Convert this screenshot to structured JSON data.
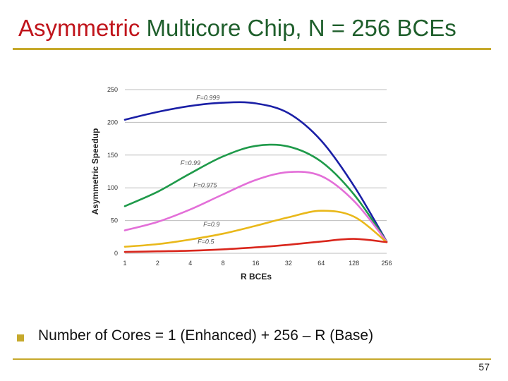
{
  "slide": {
    "title_accent": "Asymmetric",
    "title_rest": " Multicore Chip, N = 256 BCEs",
    "bullet": "Number of Cores = 1 (Enhanced) + 256 – R (Base)",
    "page_number": "57",
    "colors": {
      "title_accent": "#c0141b",
      "title_main": "#1f5f2c",
      "rule": "#c6a92c",
      "bullet": "#c6a92c"
    }
  },
  "chart_data": {
    "type": "line",
    "xlabel": "R BCEs",
    "ylabel": "Asymmetric Speedup",
    "x_scale": "log2",
    "categories": [
      "1",
      "2",
      "4",
      "8",
      "16",
      "32",
      "64",
      "128",
      "256"
    ],
    "x": [
      1,
      2,
      4,
      8,
      16,
      32,
      64,
      128,
      256
    ],
    "ylim": [
      0,
      250
    ],
    "yticks": [
      0,
      50,
      100,
      150,
      200,
      250
    ],
    "grid": true,
    "series": [
      {
        "name": "F=0.999",
        "color": "#1a1fa6",
        "values": [
          204,
          216,
          225,
          230,
          229,
          214,
          172,
          103,
          18
        ]
      },
      {
        "name": "F=0.99",
        "color": "#1f9a4a",
        "values": [
          72,
          94,
          122,
          148,
          164,
          163,
          140,
          90,
          18
        ]
      },
      {
        "name": "F=0.975",
        "color": "#e36fd8",
        "values": [
          35,
          48,
          67,
          90,
          112,
          124,
          118,
          80,
          18
        ]
      },
      {
        "name": "F=0.9",
        "color": "#e9b81a",
        "values": [
          10,
          14,
          21,
          30,
          42,
          55,
          65,
          56,
          17
        ]
      },
      {
        "name": "F=0.5",
        "color": "#d9261c",
        "values": [
          2,
          3,
          4,
          6,
          9,
          13,
          18,
          22,
          17
        ]
      }
    ]
  }
}
